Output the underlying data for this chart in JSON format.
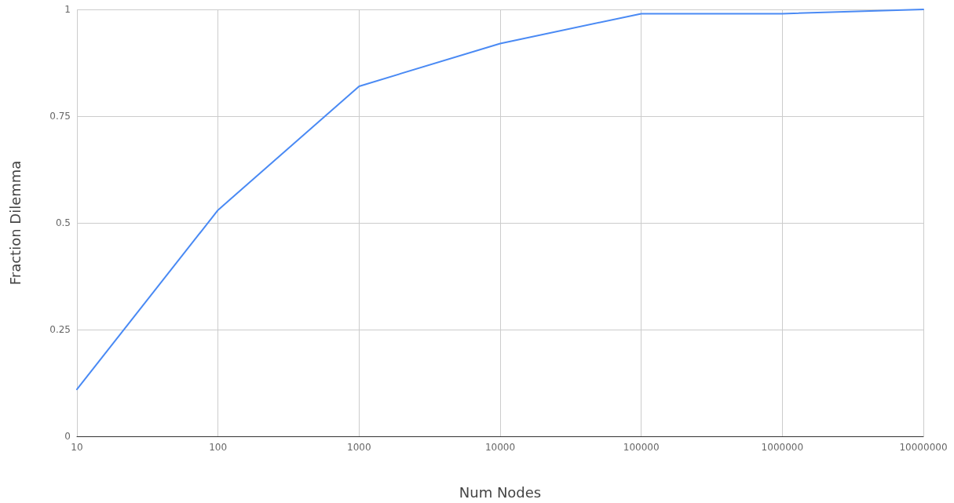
{
  "chart_data": {
    "type": "line",
    "xlabel": "Num Nodes",
    "ylabel": "Fraction Dilemma",
    "x": [
      10,
      100,
      1000,
      10000,
      100000,
      1000000,
      10000000
    ],
    "series": [
      {
        "color": "#4a8af4",
        "values": [
          0.11,
          0.53,
          0.82,
          0.92,
          0.99,
          0.99,
          1
        ]
      }
    ],
    "log": "x",
    "xlim": [
      10,
      10000000
    ],
    "xticks": [
      10,
      100,
      1000,
      10000,
      100000,
      1000000,
      10000000
    ],
    "ylim": [
      0,
      1
    ],
    "yticks": [
      0,
      0.25,
      0.5,
      0.75,
      1
    ],
    "grid": true,
    "marker": "none",
    "line_style": "solid"
  }
}
